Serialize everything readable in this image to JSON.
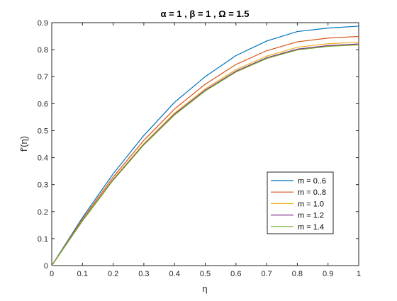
{
  "chart_data": {
    "type": "line",
    "title": "α = 1 ,  β = 1  , Ω = 1.5",
    "xlabel": "η",
    "ylabel": "f'(η)",
    "xlim": [
      0,
      1
    ],
    "ylim": [
      0,
      0.9
    ],
    "xticks": [
      "0",
      "0.1",
      "0.2",
      "0.3",
      "0.4",
      "0.5",
      "0.6",
      "0.7",
      "0.8",
      "0.9",
      "1"
    ],
    "yticks": [
      "0",
      "0.1",
      "0.2",
      "0.3",
      "0.4",
      "0.5",
      "0.6",
      "0.7",
      "0.8",
      "0.9"
    ],
    "grid": false,
    "legend_position": "bottom-right",
    "x": [
      0,
      0.1,
      0.2,
      0.3,
      0.4,
      0.5,
      0.6,
      0.7,
      0.8,
      0.9,
      1.0
    ],
    "series": [
      {
        "name": "m = 0..6",
        "color": "#0072BD",
        "values": [
          0,
          0.178,
          0.34,
          0.482,
          0.605,
          0.7,
          0.778,
          0.832,
          0.867,
          0.88,
          0.887
        ]
      },
      {
        "name": "m = 0..8",
        "color": "#D95319",
        "values": [
          0,
          0.172,
          0.328,
          0.464,
          0.58,
          0.672,
          0.745,
          0.796,
          0.829,
          0.843,
          0.849
        ]
      },
      {
        "name": "m = 1.0",
        "color": "#EDB120",
        "values": [
          0,
          0.168,
          0.32,
          0.452,
          0.565,
          0.655,
          0.726,
          0.776,
          0.809,
          0.822,
          0.828
        ]
      },
      {
        "name": "m = 1.2",
        "color": "#7E2F8E",
        "values": [
          0,
          0.166,
          0.318,
          0.449,
          0.561,
          0.65,
          0.72,
          0.77,
          0.802,
          0.815,
          0.821
        ]
      },
      {
        "name": "m = 1.4",
        "color": "#77AC30",
        "values": [
          0,
          0.165,
          0.316,
          0.447,
          0.558,
          0.647,
          0.717,
          0.767,
          0.799,
          0.812,
          0.818
        ]
      }
    ]
  }
}
